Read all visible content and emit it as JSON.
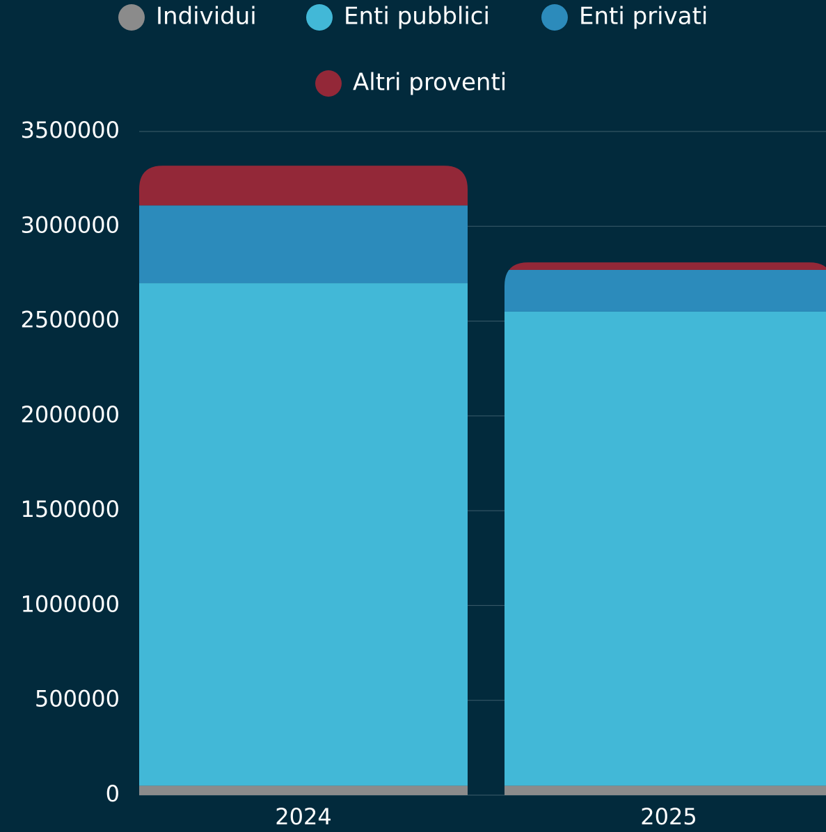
{
  "chart_data": {
    "type": "stacked-bar",
    "categories": [
      "2024",
      "2025"
    ],
    "series": [
      {
        "name": "Individui",
        "color": "#8b8b8b",
        "values": [
          50000,
          50000
        ]
      },
      {
        "name": "Enti pubblici",
        "color": "#42b8d7",
        "values": [
          2650000,
          2500000
        ]
      },
      {
        "name": "Enti privati",
        "color": "#2c8bbb",
        "values": [
          410000,
          220000
        ]
      },
      {
        "name": "Altri proventi",
        "color": "#932838",
        "values": [
          210000,
          40000
        ]
      }
    ],
    "ylim": [
      0,
      3500000
    ],
    "yticks": [
      0,
      500000,
      1000000,
      1500000,
      2000000,
      2500000,
      3000000,
      3500000
    ],
    "grid": true,
    "legend": "top"
  }
}
